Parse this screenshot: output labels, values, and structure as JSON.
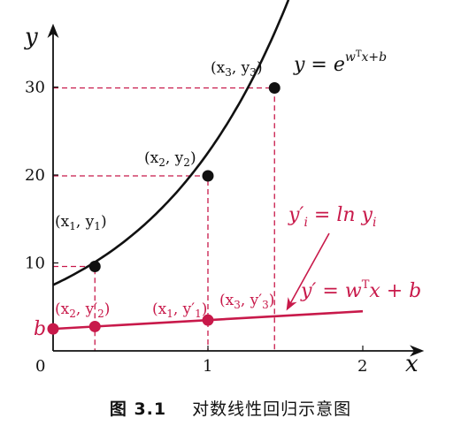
{
  "chart_data": {
    "type": "line",
    "x_axis_label": "x",
    "y_axis_label": "y",
    "x_ticks": [
      "0",
      "1",
      "2"
    ],
    "y_ticks": [
      "10",
      "20",
      "30"
    ],
    "b_label": "b",
    "curve": {
      "label": "y = e^{w^T x + b}",
      "label_parts": {
        "lhs": "y = e",
        "sup_prefix": "w",
        "sup_t": "T",
        "sup_suffix": "x+b"
      },
      "color": "#111111",
      "y0": 7.5,
      "growth": 1.1,
      "x_range": [
        0,
        1.52
      ]
    },
    "line": {
      "label": "y' = w^T x + b",
      "label_parts": {
        "lhs": "y′ = w",
        "sup_t": "T",
        "rhs": "x + b"
      },
      "color": "#c8194a",
      "y0": 2.5,
      "slope": 1.0,
      "x_range": [
        0,
        2
      ]
    },
    "transform_label": {
      "text": "y'_i = ln y_i",
      "parts": {
        "lhs": "y′",
        "lhs_sub": "i",
        "middle": " = ln y",
        "rhs_sub": "i"
      }
    },
    "points": [
      {
        "label": "(x1, y1)",
        "parts": [
          "(x",
          "1",
          ", y",
          "1",
          ")"
        ],
        "x": 0.27,
        "y": 9.6
      },
      {
        "label": "(x2, y2)",
        "parts": [
          "(x",
          "2",
          ", y",
          "2",
          ")"
        ],
        "x": 1.0,
        "y": 19.9
      },
      {
        "label": "(x3, y3)",
        "parts": [
          "(x",
          "3",
          ", y",
          "3",
          ")"
        ],
        "x": 1.43,
        "y": 29.9
      }
    ],
    "transformed_points": [
      {
        "label": "(x2, y'2)",
        "parts": [
          "(x",
          "2",
          ", y′",
          "2",
          ")"
        ],
        "x": 0.0,
        "y": 2.5
      },
      {
        "label": "(x1, y'1)",
        "parts": [
          "(x",
          "1",
          ", y′",
          "1",
          ")"
        ],
        "x": 0.27,
        "y": 2.77
      },
      {
        "label": "(x3, y'3)",
        "parts": [
          "(x",
          "3",
          ", y′",
          "3",
          ")"
        ],
        "x": 1.0,
        "y": 3.5
      }
    ],
    "xlim": [
      0,
      2.3
    ],
    "ylim": [
      0,
      36
    ],
    "grid": false,
    "dashed_guides": true,
    "colors": {
      "axis": "#111111",
      "curve": "#111111",
      "line": "#c8194a",
      "guide": "#c8194a"
    }
  },
  "caption": {
    "figure_number": "图 3.1",
    "title": "对数线性回归示意图"
  }
}
